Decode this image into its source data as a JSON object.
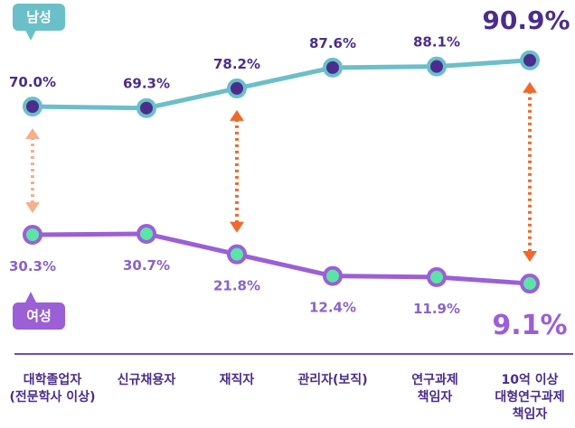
{
  "chart_data": {
    "type": "line",
    "categories": [
      "대학졸업자\n(전문학사 이상)",
      "신규채용자",
      "재직자",
      "관리자(보직)",
      "연구과제\n책임자",
      "10억 이상\n대형연구과제\n책임자"
    ],
    "series": [
      {
        "name": "남성",
        "values": [
          70.0,
          69.3,
          78.2,
          87.6,
          88.1,
          90.9
        ],
        "labels": [
          "70.0%",
          "69.3%",
          "78.2%",
          "87.6%",
          "88.1%",
          "90.9%"
        ]
      },
      {
        "name": "여성",
        "values": [
          30.3,
          30.7,
          21.8,
          12.4,
          11.9,
          9.1
        ],
        "labels": [
          "30.3%",
          "30.7%",
          "21.8%",
          "12.4%",
          "11.9%",
          "9.1%"
        ]
      }
    ]
  },
  "colors": {
    "male": "#6bbfc8",
    "female": "#9b5fd6",
    "arrow_light": "#f4b08e",
    "arrow_dark": "#ee6a2c",
    "label": "#4a2d8c"
  }
}
